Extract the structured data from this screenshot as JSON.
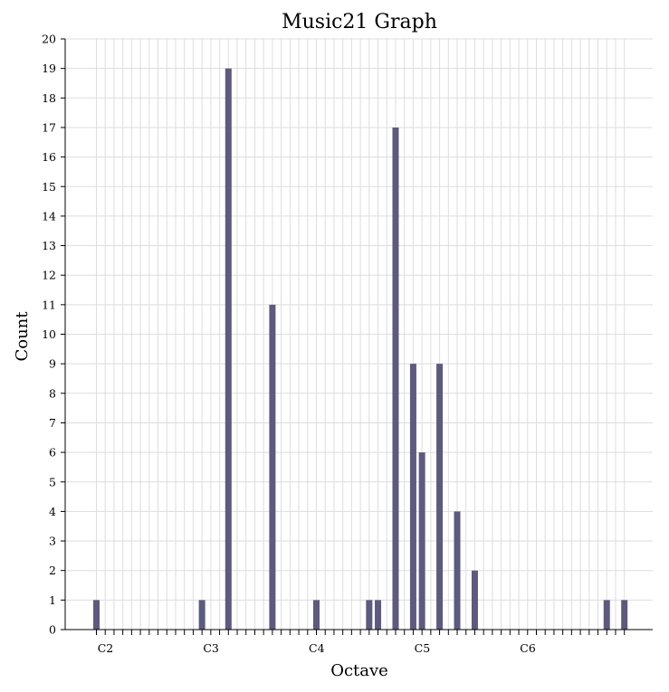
{
  "chart_data": {
    "type": "bar",
    "title": "Music21 Graph",
    "xlabel": "Octave",
    "ylabel": "Count",
    "ylim": [
      0,
      20
    ],
    "y_ticks": [
      0,
      1,
      2,
      3,
      4,
      5,
      6,
      7,
      8,
      9,
      10,
      11,
      12,
      13,
      14,
      15,
      16,
      17,
      18,
      19,
      20
    ],
    "grid": true,
    "bar_color": "#5c5a7f",
    "grid_color": "#dddddd",
    "x_tick_labels": [
      {
        "label": "C2",
        "semitone": 0
      },
      {
        "label": "C3",
        "semitone": 12
      },
      {
        "label": "C4",
        "semitone": 24
      },
      {
        "label": "C5",
        "semitone": 36
      },
      {
        "label": "C6",
        "semitone": 48
      }
    ],
    "x_range_semitones": [
      0,
      60
    ],
    "bars": [
      {
        "semitone": 0,
        "value": 1
      },
      {
        "semitone": 12,
        "value": 1
      },
      {
        "semitone": 15,
        "value": 19
      },
      {
        "semitone": 20,
        "value": 11
      },
      {
        "semitone": 25,
        "value": 1
      },
      {
        "semitone": 31,
        "value": 1
      },
      {
        "semitone": 32,
        "value": 1
      },
      {
        "semitone": 34,
        "value": 17
      },
      {
        "semitone": 36,
        "value": 9
      },
      {
        "semitone": 37,
        "value": 6
      },
      {
        "semitone": 39,
        "value": 9
      },
      {
        "semitone": 41,
        "value": 4
      },
      {
        "semitone": 43,
        "value": 2
      },
      {
        "semitone": 58,
        "value": 1
      },
      {
        "semitone": 60,
        "value": 1
      }
    ]
  }
}
